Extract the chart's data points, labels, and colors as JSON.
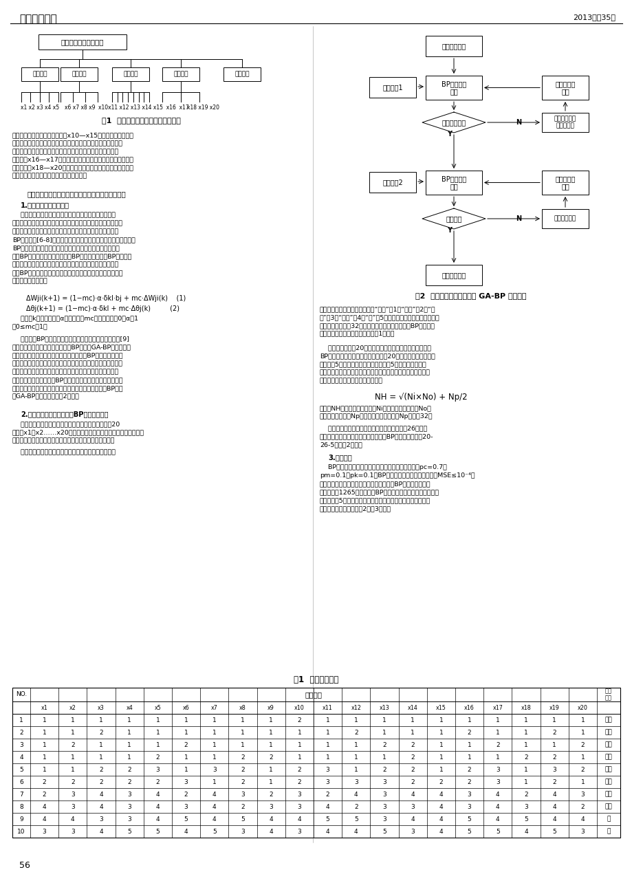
{
  "title_left": "中国电力教育",
  "title_right": "2013年第35期",
  "page_number": "56",
  "fig1_title": "图1  高校双语教学质量评价指标体系",
  "fig2_title": "图2  高校双语教学质量评价 GA-BP 算法流程",
  "table_title": "表1  部分学习样本",
  "fig1_root": "高校双语教学质量评价",
  "fig1_branches": [
    "教师素质",
    "学生素质",
    "教学过程",
    "教学效果",
    "管理体制"
  ],
  "fig2_init": "初始化染色体",
  "fig2_bp_fwd": "BP网络正向\n运行",
  "fig2_next_gen": "产生下一代\n种群",
  "fig2_net_eval": "网络性能评价",
  "fig2_select": "选择、助长、\n交叉、变异",
  "fig2_bp_bi": "BP网络双向\n运行",
  "fig2_adjust": "调整权值和\n阈值",
  "fig2_cond": "条件判断",
  "fig2_err_bp": "误差反向传播",
  "fig2_end": "学习过程结束",
  "fig2_train1": "训练样本1",
  "fig2_train2": "训练样本2",
  "table_data": [
    [
      1,
      1,
      1,
      1,
      1,
      1,
      1,
      1,
      1,
      1,
      2,
      1,
      1,
      1,
      1,
      1,
      1,
      1,
      1,
      1,
      1,
      "优秀"
    ],
    [
      2,
      1,
      1,
      2,
      1,
      1,
      1,
      1,
      1,
      1,
      1,
      1,
      2,
      1,
      1,
      1,
      2,
      1,
      1,
      2,
      1,
      "优秀"
    ],
    [
      3,
      1,
      2,
      1,
      1,
      1,
      2,
      1,
      1,
      1,
      1,
      1,
      1,
      2,
      2,
      1,
      1,
      2,
      1,
      1,
      2,
      "良好"
    ],
    [
      4,
      1,
      1,
      1,
      1,
      2,
      1,
      1,
      2,
      2,
      1,
      1,
      1,
      1,
      2,
      1,
      1,
      1,
      2,
      2,
      1,
      "良好"
    ],
    [
      5,
      1,
      1,
      2,
      2,
      3,
      1,
      3,
      2,
      1,
      2,
      3,
      1,
      2,
      2,
      1,
      2,
      3,
      1,
      3,
      2,
      "中等"
    ],
    [
      6,
      2,
      2,
      2,
      2,
      2,
      3,
      1,
      2,
      1,
      2,
      3,
      3,
      3,
      2,
      2,
      2,
      3,
      1,
      2,
      1,
      "中等"
    ],
    [
      7,
      2,
      3,
      4,
      3,
      4,
      2,
      4,
      3,
      2,
      3,
      2,
      4,
      3,
      4,
      4,
      3,
      4,
      2,
      4,
      3,
      "较差"
    ],
    [
      8,
      4,
      3,
      4,
      3,
      4,
      3,
      4,
      2,
      3,
      3,
      4,
      2,
      3,
      3,
      4,
      3,
      4,
      3,
      4,
      2,
      "较差"
    ],
    [
      9,
      4,
      4,
      3,
      3,
      4,
      5,
      4,
      5,
      4,
      4,
      5,
      5,
      3,
      4,
      4,
      5,
      4,
      5,
      4,
      4,
      "差"
    ],
    [
      10,
      3,
      3,
      4,
      5,
      5,
      4,
      5,
      3,
      4,
      3,
      4,
      4,
      5,
      3,
      4,
      5,
      5,
      4,
      5,
      3,
      "差"
    ]
  ]
}
